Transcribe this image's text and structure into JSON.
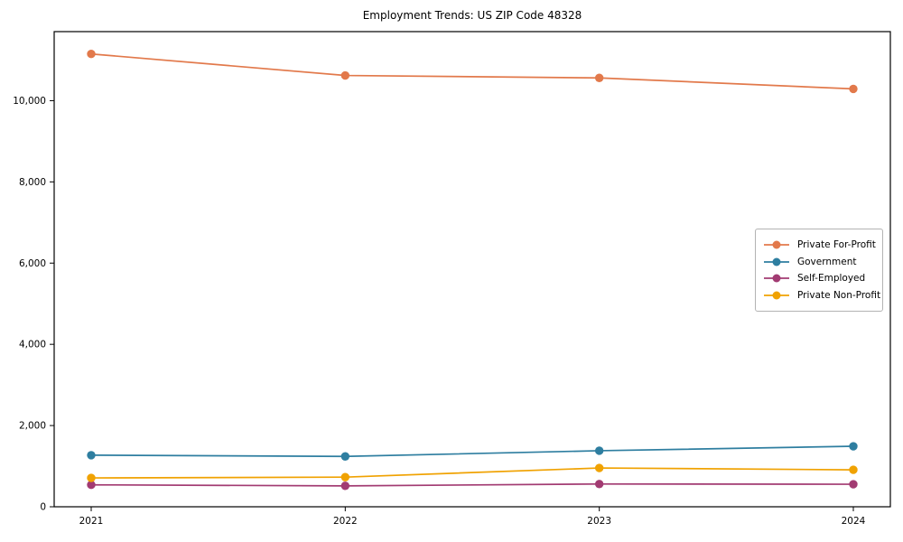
{
  "chart_data": {
    "type": "line",
    "title": "Employment Trends: US ZIP Code 48328",
    "xlabel": "",
    "ylabel": "",
    "categories": [
      "2021",
      "2022",
      "2023",
      "2024"
    ],
    "series": [
      {
        "name": "Private For-Profit",
        "color": "#E2794B",
        "values": [
          11150,
          10620,
          10560,
          10290
        ]
      },
      {
        "name": "Government",
        "color": "#2E7EA0",
        "values": [
          1270,
          1240,
          1380,
          1490
        ]
      },
      {
        "name": "Self-Employed",
        "color": "#A23B72",
        "values": [
          540,
          515,
          560,
          555
        ]
      },
      {
        "name": "Private Non-Profit",
        "color": "#F0A202",
        "values": [
          710,
          730,
          955,
          910
        ]
      }
    ],
    "ylim": [
      0,
      11700
    ],
    "yticks": [
      0,
      2000,
      4000,
      6000,
      8000,
      10000
    ],
    "ytick_labels": [
      "0",
      "2,000",
      "4,000",
      "6,000",
      "8,000",
      "10,000"
    ],
    "grid": false,
    "marker": "circle",
    "legend_position": "center-right",
    "axis_color": "#000000",
    "legend_border_color": "#b3b3b3",
    "background_color": "#ffffff"
  }
}
